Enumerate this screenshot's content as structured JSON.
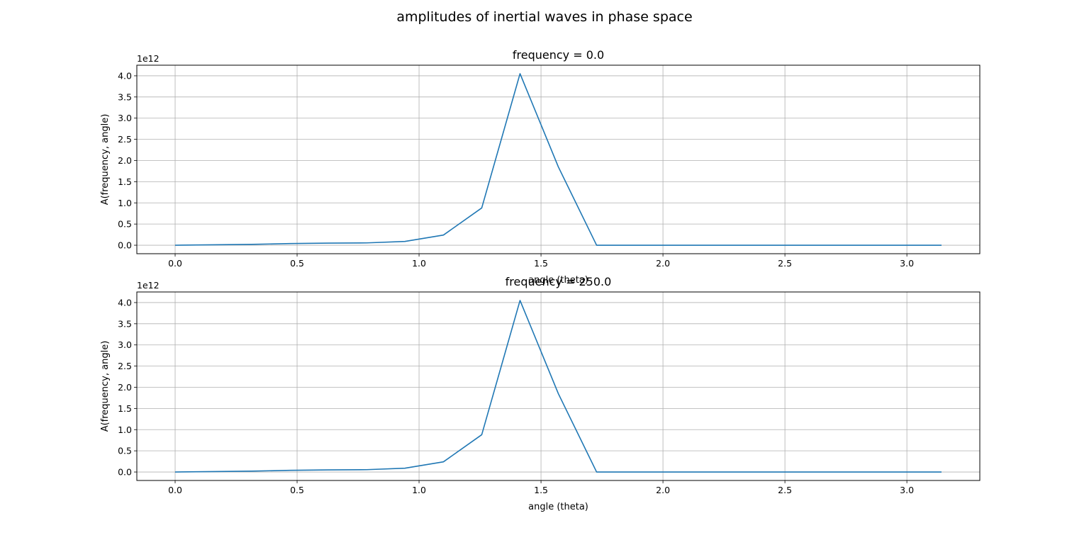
{
  "figure": {
    "suptitle": "amplitudes of inertial waves in phase space"
  },
  "chart_data": [
    {
      "type": "line",
      "title": "frequency = 0.0",
      "xlabel": "angle (theta)",
      "ylabel": "A(frequency, angle)",
      "y_offset_label": "1e12",
      "xlim": [
        -0.157,
        3.299
      ],
      "ylim": [
        -0.2,
        4.25
      ],
      "xticks": [
        0.0,
        0.5,
        1.0,
        1.5,
        2.0,
        2.5,
        3.0
      ],
      "xtick_labels": [
        "0.0",
        "0.5",
        "1.0",
        "1.5",
        "2.0",
        "2.5",
        "3.0"
      ],
      "yticks": [
        0.0,
        0.5,
        1.0,
        1.5,
        2.0,
        2.5,
        3.0,
        3.5,
        4.0
      ],
      "ytick_labels": [
        "0.0",
        "0.5",
        "1.0",
        "1.5",
        "2.0",
        "2.5",
        "3.0",
        "3.5",
        "4.0"
      ],
      "grid": true,
      "color": "#1f77b4",
      "series": [
        {
          "x": [
            0.0,
            0.157,
            0.314,
            0.471,
            0.628,
            0.785,
            0.942,
            1.1,
            1.257,
            1.414,
            1.571,
            1.728,
            1.885,
            2.042,
            2.199,
            2.356,
            2.513,
            2.67,
            2.827,
            2.985,
            3.142
          ],
          "y": [
            0.0,
            0.01,
            0.02,
            0.04,
            0.05,
            0.055,
            0.09,
            0.24,
            0.88,
            4.05,
            1.85,
            0.0,
            0.0,
            0.0,
            0.0,
            0.0,
            0.0,
            0.0,
            0.0,
            0.0,
            0.0
          ]
        }
      ]
    },
    {
      "type": "line",
      "title": "frequency = 250.0",
      "xlabel": "angle (theta)",
      "ylabel": "A(frequency, angle)",
      "y_offset_label": "1e12",
      "xlim": [
        -0.157,
        3.299
      ],
      "ylim": [
        -0.2,
        4.25
      ],
      "xticks": [
        0.0,
        0.5,
        1.0,
        1.5,
        2.0,
        2.5,
        3.0
      ],
      "xtick_labels": [
        "0.0",
        "0.5",
        "1.0",
        "1.5",
        "2.0",
        "2.5",
        "3.0"
      ],
      "yticks": [
        0.0,
        0.5,
        1.0,
        1.5,
        2.0,
        2.5,
        3.0,
        3.5,
        4.0
      ],
      "ytick_labels": [
        "0.0",
        "0.5",
        "1.0",
        "1.5",
        "2.0",
        "2.5",
        "3.0",
        "3.5",
        "4.0"
      ],
      "grid": true,
      "color": "#1f77b4",
      "series": [
        {
          "x": [
            0.0,
            0.157,
            0.314,
            0.471,
            0.628,
            0.785,
            0.942,
            1.1,
            1.257,
            1.414,
            1.571,
            1.728,
            1.885,
            2.042,
            2.199,
            2.356,
            2.513,
            2.67,
            2.827,
            2.985,
            3.142
          ],
          "y": [
            0.0,
            0.01,
            0.02,
            0.04,
            0.05,
            0.055,
            0.09,
            0.24,
            0.88,
            4.05,
            1.85,
            0.0,
            0.0,
            0.0,
            0.0,
            0.0,
            0.0,
            0.0,
            0.0,
            0.0,
            0.0
          ]
        }
      ]
    }
  ]
}
